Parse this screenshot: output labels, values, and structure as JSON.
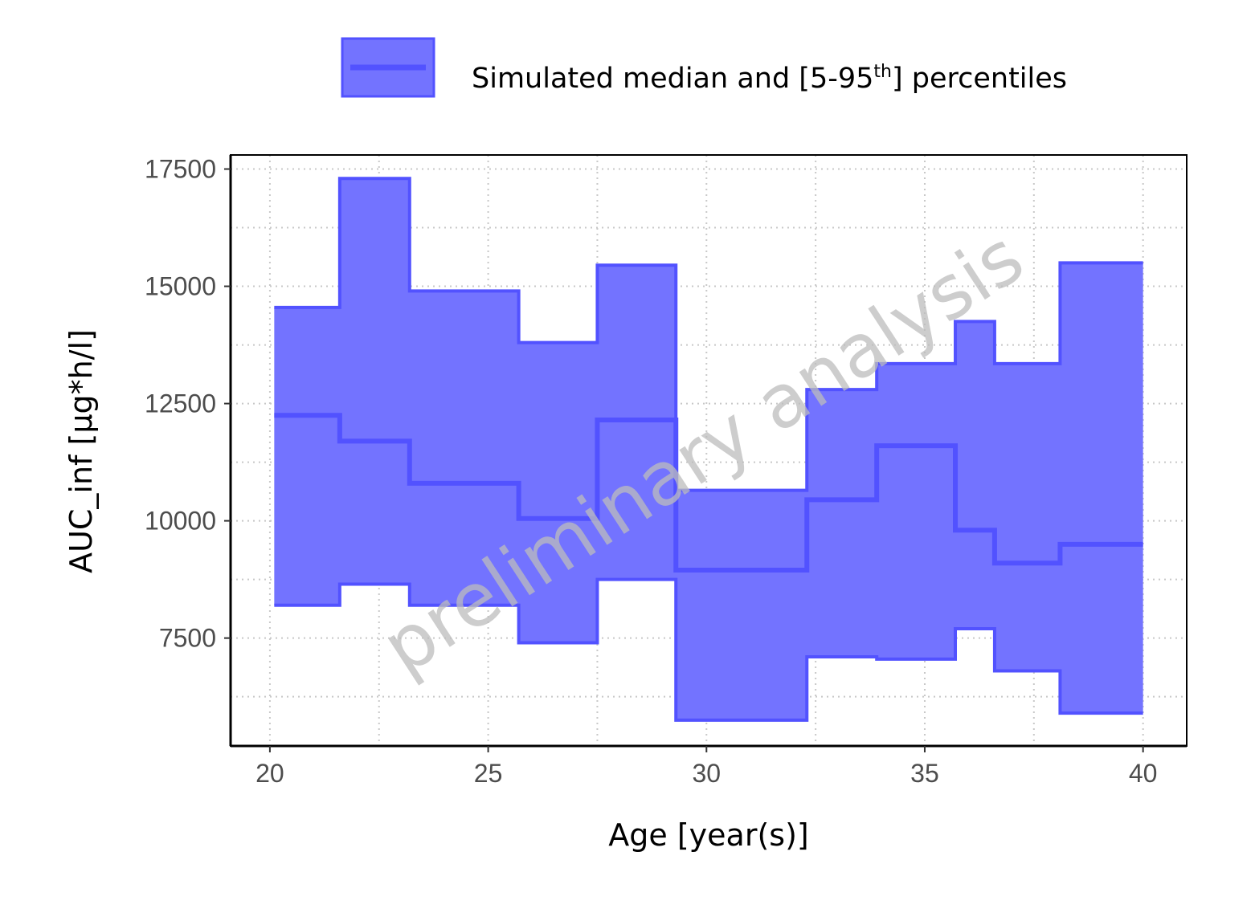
{
  "legend": {
    "label_before": "Simulated median and [5-95",
    "label_sup": "th",
    "label_after": "] percentiles",
    "position": "top"
  },
  "watermark": "preliminary analysis",
  "colors": {
    "band_fill": "#7373ff",
    "band_stroke": "#5252ff",
    "median_line": "#5252ff",
    "grid": "#c8c8c8",
    "axis": "#000000"
  },
  "chart_data": {
    "type": "area",
    "title": "",
    "xlabel": "Age [year(s)]",
    "ylabel": "AUC_inf [µg*h/l]",
    "xlim": [
      19.1,
      41
    ],
    "ylim": [
      5200,
      17800
    ],
    "xticks": [
      20,
      25,
      30,
      35,
      40
    ],
    "yticks": [
      7500,
      10000,
      12500,
      15000,
      17500
    ],
    "xtick_labels": [
      "20",
      "25",
      "30",
      "35",
      "40"
    ],
    "ytick_labels": [
      "7500",
      "10000",
      "12500",
      "15000",
      "17500"
    ],
    "grid": true,
    "series": [
      {
        "name": "Simulated median and [5-95th] percentiles",
        "step": true,
        "bins": [
          {
            "x_start": 20.1,
            "x_end": 21.6,
            "median": 12250,
            "p5": 8200,
            "p95": 14550
          },
          {
            "x_start": 21.6,
            "x_end": 23.2,
            "median": 11700,
            "p5": 8650,
            "p95": 17300
          },
          {
            "x_start": 23.2,
            "x_end": 25.7,
            "median": 10800,
            "p5": 8200,
            "p95": 14900
          },
          {
            "x_start": 25.7,
            "x_end": 27.5,
            "median": 10050,
            "p5": 7400,
            "p95": 13800
          },
          {
            "x_start": 27.5,
            "x_end": 29.3,
            "median": 12150,
            "p5": 8750,
            "p95": 15450
          },
          {
            "x_start": 29.3,
            "x_end": 32.3,
            "median": 8950,
            "p5": 5750,
            "p95": 10650
          },
          {
            "x_start": 32.3,
            "x_end": 33.9,
            "median": 10450,
            "p5": 7100,
            "p95": 12800
          },
          {
            "x_start": 33.9,
            "x_end": 35.7,
            "median": 11600,
            "p5": 7050,
            "p95": 13350
          },
          {
            "x_start": 35.7,
            "x_end": 36.6,
            "median": 9800,
            "p5": 7700,
            "p95": 14250
          },
          {
            "x_start": 36.6,
            "x_end": 38.1,
            "median": 9100,
            "p5": 6800,
            "p95": 13350
          },
          {
            "x_start": 38.1,
            "x_end": 40.0,
            "median": 9500,
            "p5": 5900,
            "p95": 15500
          }
        ]
      }
    ]
  }
}
